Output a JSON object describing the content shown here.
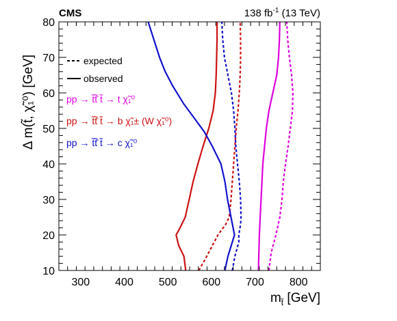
{
  "chart_data": {
    "type": "line",
    "header_left": "CMS",
    "header_right_prefix": "138 fb",
    "header_right_sup": "-1",
    "header_right_suffix": " (13 TeV)",
    "xlabel_main": "m",
    "xlabel_sub": "t̃",
    "xlabel_unit": " [GeV]",
    "ylabel": "Δ m(t̃, χ̃₁⁰) [GeV]",
    "xlim": [
      250,
      850
    ],
    "ylim": [
      10,
      80
    ],
    "xticks": [
      300,
      400,
      500,
      600,
      700,
      800
    ],
    "yticks": [
      10,
      20,
      30,
      40,
      50,
      60,
      70,
      80
    ],
    "legend_style": [
      {
        "label": "expected",
        "dash": "dashed"
      },
      {
        "label": "observed",
        "dash": "solid"
      }
    ],
    "legend_models": [
      {
        "text": "pp → t̃t̃̄  t̃ → t χ̃₁⁰",
        "color": "#dd00dd"
      },
      {
        "text": "pp → t̃t̃̄  t̃ → b χ̃₁± (W χ̃₁⁰)",
        "color": "#cc1111"
      },
      {
        "text": "pp → t̃t̃̄  t̃ → c χ̃₁⁰",
        "color": "#1111cc"
      }
    ],
    "series": [
      {
        "color": "#dd00dd",
        "dash": "solid",
        "points": [
          [
            708,
            10
          ],
          [
            709,
            15
          ],
          [
            710,
            20
          ],
          [
            712,
            25
          ],
          [
            714,
            30
          ],
          [
            716,
            35
          ],
          [
            718,
            40
          ],
          [
            722,
            45
          ],
          [
            726,
            50
          ],
          [
            732,
            55
          ],
          [
            741,
            60
          ],
          [
            750,
            65
          ],
          [
            754,
            70
          ],
          [
            756,
            75
          ],
          [
            757,
            80
          ]
        ]
      },
      {
        "color": "#dd00dd",
        "dash": "dashed",
        "points": [
          [
            732,
            10
          ],
          [
            737,
            15
          ],
          [
            748,
            20
          ],
          [
            757,
            25
          ],
          [
            762,
            30
          ],
          [
            765,
            35
          ],
          [
            770,
            40
          ],
          [
            776,
            45
          ],
          [
            781,
            50
          ],
          [
            786,
            55
          ],
          [
            787,
            60
          ],
          [
            784,
            65
          ],
          [
            779,
            70
          ],
          [
            775,
            75
          ],
          [
            773,
            80
          ]
        ]
      },
      {
        "color": "#cc1111",
        "dash": "solid",
        "points": [
          [
            541,
            10
          ],
          [
            537,
            14
          ],
          [
            525,
            17
          ],
          [
            519,
            20
          ],
          [
            528,
            22
          ],
          [
            540,
            25
          ],
          [
            549,
            30
          ],
          [
            558,
            35
          ],
          [
            569,
            40
          ],
          [
            581,
            45
          ],
          [
            594,
            50
          ],
          [
            604,
            55
          ],
          [
            609,
            60
          ],
          [
            611,
            65
          ],
          [
            612,
            70
          ],
          [
            613,
            75
          ],
          [
            613,
            80
          ]
        ]
      },
      {
        "color": "#cc1111",
        "dash": "dashed",
        "points": [
          [
            571,
            10
          ],
          [
            585,
            13
          ],
          [
            598,
            16
          ],
          [
            615,
            20
          ],
          [
            633,
            23
          ],
          [
            641,
            25
          ],
          [
            645,
            30
          ],
          [
            648,
            35
          ],
          [
            651,
            40
          ],
          [
            654,
            45
          ],
          [
            657,
            50
          ],
          [
            661,
            55
          ],
          [
            664,
            60
          ],
          [
            666,
            65
          ],
          [
            667,
            70
          ],
          [
            667,
            75
          ],
          [
            666,
            80
          ]
        ]
      },
      {
        "color": "#1111cc",
        "dash": "solid",
        "points": [
          [
            631,
            10
          ],
          [
            638,
            14
          ],
          [
            648,
            18
          ],
          [
            653,
            20
          ],
          [
            645,
            25
          ],
          [
            637,
            30
          ],
          [
            631,
            35
          ],
          [
            622,
            40
          ],
          [
            602,
            45
          ],
          [
            584,
            49
          ],
          [
            560,
            53
          ],
          [
            536,
            57
          ],
          [
            511,
            62
          ],
          [
            494,
            66
          ],
          [
            481,
            70
          ],
          [
            468,
            75
          ],
          [
            455,
            80
          ]
        ]
      },
      {
        "color": "#1111cc",
        "dash": "dashed",
        "points": [
          [
            648,
            10
          ],
          [
            654,
            14
          ],
          [
            663,
            18
          ],
          [
            663,
            20
          ],
          [
            667,
            23
          ],
          [
            668,
            25
          ],
          [
            667,
            30
          ],
          [
            664,
            35
          ],
          [
            660,
            40
          ],
          [
            656,
            45
          ],
          [
            654,
            50
          ],
          [
            651,
            55
          ],
          [
            646,
            60
          ],
          [
            638,
            65
          ],
          [
            630,
            70
          ],
          [
            626,
            75
          ],
          [
            624,
            80
          ]
        ]
      }
    ]
  }
}
